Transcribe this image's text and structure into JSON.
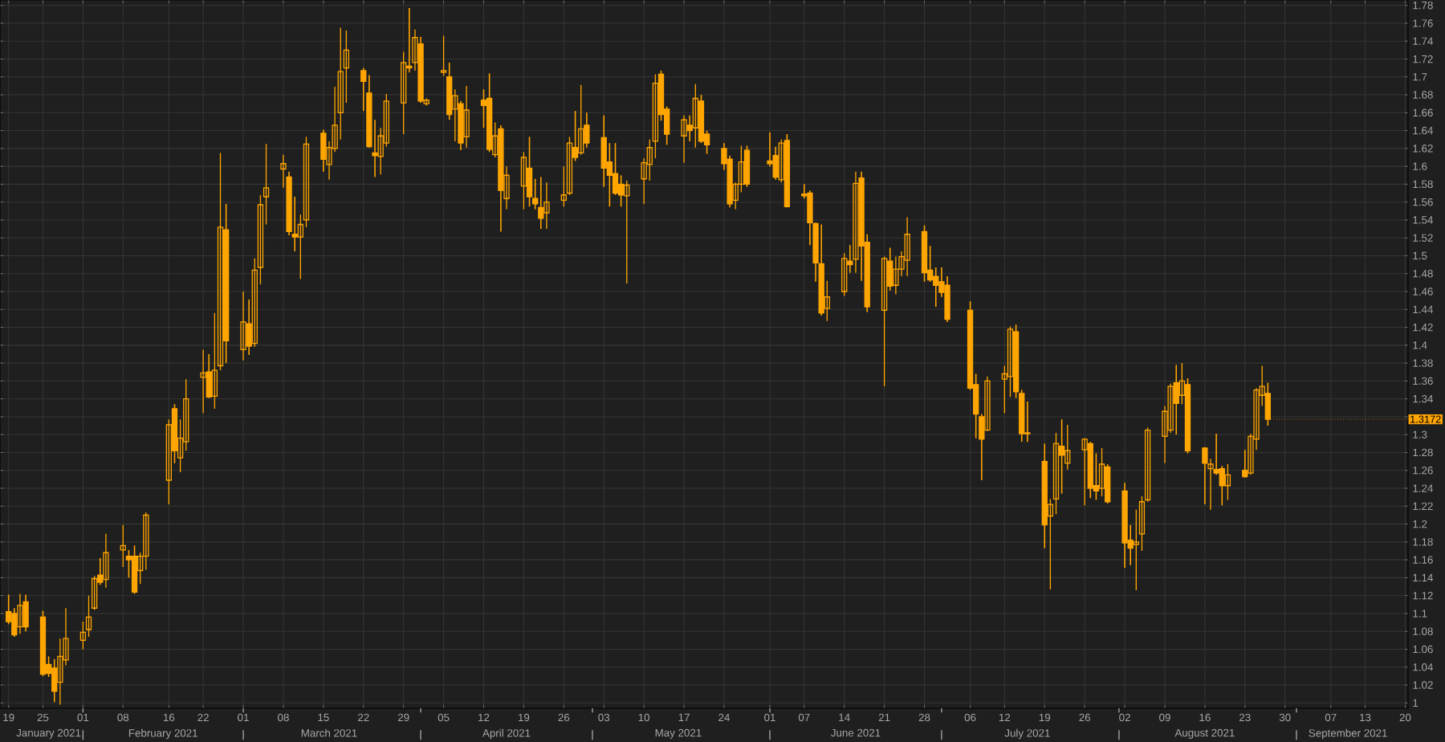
{
  "chart_data": {
    "type": "candlestick",
    "color": "#ffa500",
    "grid": true,
    "x": [
      "2021-01-19",
      "2021-01-20",
      "2021-01-21",
      "2021-01-22",
      "2021-01-25",
      "2021-01-26",
      "2021-01-27",
      "2021-01-28",
      "2021-01-29",
      "2021-02-01",
      "2021-02-02",
      "2021-02-03",
      "2021-02-04",
      "2021-02-05",
      "2021-02-08",
      "2021-02-09",
      "2021-02-10",
      "2021-02-11",
      "2021-02-12",
      "2021-02-16",
      "2021-02-17",
      "2021-02-18",
      "2021-02-19",
      "2021-02-22",
      "2021-02-23",
      "2021-02-24",
      "2021-02-25",
      "2021-02-26",
      "2021-03-01",
      "2021-03-02",
      "2021-03-03",
      "2021-03-04",
      "2021-03-05",
      "2021-03-08",
      "2021-03-09",
      "2021-03-10",
      "2021-03-11",
      "2021-03-12",
      "2021-03-15",
      "2021-03-16",
      "2021-03-17",
      "2021-03-18",
      "2021-03-19",
      "2021-03-22",
      "2021-03-23",
      "2021-03-24",
      "2021-03-25",
      "2021-03-26",
      "2021-03-29",
      "2021-03-30",
      "2021-03-31",
      "2021-04-01",
      "2021-04-02",
      "2021-04-05",
      "2021-04-06",
      "2021-04-07",
      "2021-04-08",
      "2021-04-09",
      "2021-04-12",
      "2021-04-13",
      "2021-04-14",
      "2021-04-15",
      "2021-04-16",
      "2021-04-19",
      "2021-04-20",
      "2021-04-21",
      "2021-04-22",
      "2021-04-23",
      "2021-04-26",
      "2021-04-27",
      "2021-04-28",
      "2021-04-29",
      "2021-04-30",
      "2021-05-03",
      "2021-05-04",
      "2021-05-05",
      "2021-05-06",
      "2021-05-07",
      "2021-05-10",
      "2021-05-11",
      "2021-05-12",
      "2021-05-13",
      "2021-05-14",
      "2021-05-17",
      "2021-05-18",
      "2021-05-19",
      "2021-05-20",
      "2021-05-21",
      "2021-05-24",
      "2021-05-25",
      "2021-05-26",
      "2021-05-27",
      "2021-05-28",
      "2021-06-01",
      "2021-06-02",
      "2021-06-03",
      "2021-06-04",
      "2021-06-07",
      "2021-06-08",
      "2021-06-09",
      "2021-06-10",
      "2021-06-11",
      "2021-06-14",
      "2021-06-15",
      "2021-06-16",
      "2021-06-17",
      "2021-06-18",
      "2021-06-21",
      "2021-06-22",
      "2021-06-23",
      "2021-06-24",
      "2021-06-25",
      "2021-06-28",
      "2021-06-29",
      "2021-06-30",
      "2021-07-01",
      "2021-07-02",
      "2021-07-06",
      "2021-07-07",
      "2021-07-08",
      "2021-07-09",
      "2021-07-12",
      "2021-07-13",
      "2021-07-14",
      "2021-07-15",
      "2021-07-16",
      "2021-07-19",
      "2021-07-20",
      "2021-07-21",
      "2021-07-22",
      "2021-07-23",
      "2021-07-26",
      "2021-07-27",
      "2021-07-28",
      "2021-07-29",
      "2021-07-30",
      "2021-08-02",
      "2021-08-03",
      "2021-08-04",
      "2021-08-05",
      "2021-08-06",
      "2021-08-09",
      "2021-08-10",
      "2021-08-11",
      "2021-08-12",
      "2021-08-13",
      "2021-08-16",
      "2021-08-17",
      "2021-08-18",
      "2021-08-19",
      "2021-08-20",
      "2021-08-23",
      "2021-08-24",
      "2021-08-25",
      "2021-08-26",
      "2021-08-27"
    ],
    "ohlc": [
      [
        1.102,
        1.121,
        1.088,
        1.091
      ],
      [
        1.1,
        1.106,
        1.074,
        1.076
      ],
      [
        1.085,
        1.122,
        1.077,
        1.109
      ],
      [
        1.113,
        1.121,
        1.08,
        1.085
      ],
      [
        1.096,
        1.103,
        1.03,
        1.032
      ],
      [
        1.043,
        1.052,
        1.029,
        1.033
      ],
      [
        1.039,
        1.049,
        1.001,
        1.013
      ],
      [
        1.023,
        1.072,
        0.998,
        1.052
      ],
      [
        1.048,
        1.106,
        1.042,
        1.072
      ],
      [
        1.07,
        1.091,
        1.06,
        1.079
      ],
      [
        1.082,
        1.12,
        1.074,
        1.096
      ],
      [
        1.106,
        1.142,
        1.104,
        1.139
      ],
      [
        1.143,
        1.162,
        1.132,
        1.135
      ],
      [
        1.138,
        1.189,
        1.129,
        1.168
      ],
      [
        1.171,
        1.199,
        1.152,
        1.176
      ],
      [
        1.164,
        1.171,
        1.14,
        1.16
      ],
      [
        1.164,
        1.176,
        1.122,
        1.124
      ],
      [
        1.148,
        1.168,
        1.133,
        1.164
      ],
      [
        1.164,
        1.213,
        1.149,
        1.21
      ],
      [
        1.249,
        1.317,
        1.222,
        1.311
      ],
      [
        1.329,
        1.334,
        1.268,
        1.282
      ],
      [
        1.274,
        1.317,
        1.258,
        1.296
      ],
      [
        1.292,
        1.362,
        1.282,
        1.34
      ],
      [
        1.364,
        1.395,
        1.324,
        1.369
      ],
      [
        1.37,
        1.39,
        1.341,
        1.342
      ],
      [
        1.343,
        1.436,
        1.329,
        1.372
      ],
      [
        1.377,
        1.615,
        1.372,
        1.532
      ],
      [
        1.529,
        1.558,
        1.38,
        1.405
      ],
      [
        1.395,
        1.46,
        1.383,
        1.426
      ],
      [
        1.424,
        1.451,
        1.389,
        1.399
      ],
      [
        1.402,
        1.497,
        1.398,
        1.484
      ],
      [
        1.487,
        1.568,
        1.468,
        1.557
      ],
      [
        1.566,
        1.625,
        1.535,
        1.576
      ],
      [
        1.597,
        1.613,
        1.576,
        1.603
      ],
      [
        1.588,
        1.594,
        1.523,
        1.527
      ],
      [
        1.524,
        1.566,
        1.505,
        1.521
      ],
      [
        1.521,
        1.546,
        1.474,
        1.535
      ],
      [
        1.54,
        1.633,
        1.532,
        1.625
      ],
      [
        1.637,
        1.641,
        1.594,
        1.608
      ],
      [
        1.602,
        1.628,
        1.585,
        1.621
      ],
      [
        1.62,
        1.689,
        1.616,
        1.646
      ],
      [
        1.66,
        1.755,
        1.63,
        1.706
      ],
      [
        1.71,
        1.752,
        1.671,
        1.73
      ],
      [
        1.707,
        1.71,
        1.662,
        1.695
      ],
      [
        1.682,
        1.702,
        1.621,
        1.622
      ],
      [
        1.615,
        1.652,
        1.588,
        1.612
      ],
      [
        1.611,
        1.643,
        1.591,
        1.634
      ],
      [
        1.626,
        1.681,
        1.622,
        1.673
      ],
      [
        1.671,
        1.728,
        1.636,
        1.716
      ],
      [
        1.712,
        1.777,
        1.705,
        1.71
      ],
      [
        1.716,
        1.753,
        1.707,
        1.744
      ],
      [
        1.737,
        1.745,
        1.671,
        1.673
      ],
      [
        1.67,
        1.676,
        1.668,
        1.674
      ],
      [
        1.705,
        1.746,
        1.701,
        1.707
      ],
      [
        1.7,
        1.716,
        1.652,
        1.658
      ],
      [
        1.664,
        1.686,
        1.628,
        1.679
      ],
      [
        1.67,
        1.673,
        1.618,
        1.626
      ],
      [
        1.633,
        1.69,
        1.621,
        1.663
      ],
      [
        1.674,
        1.686,
        1.643,
        1.668
      ],
      [
        1.676,
        1.704,
        1.616,
        1.619
      ],
      [
        1.613,
        1.649,
        1.61,
        1.634
      ],
      [
        1.642,
        1.646,
        1.527,
        1.573
      ],
      [
        1.564,
        1.6,
        1.552,
        1.59
      ],
      [
        1.578,
        1.616,
        1.552,
        1.61
      ],
      [
        1.598,
        1.633,
        1.555,
        1.566
      ],
      [
        1.564,
        1.586,
        1.552,
        1.558
      ],
      [
        1.554,
        1.588,
        1.53,
        1.542
      ],
      [
        1.548,
        1.582,
        1.53,
        1.56
      ],
      [
        1.562,
        1.6,
        1.555,
        1.568
      ],
      [
        1.57,
        1.633,
        1.568,
        1.626
      ],
      [
        1.621,
        1.662,
        1.606,
        1.61
      ],
      [
        1.615,
        1.691,
        1.613,
        1.642
      ],
      [
        1.646,
        1.66,
        1.621,
        1.626
      ],
      [
        1.632,
        1.657,
        1.577,
        1.598
      ],
      [
        1.605,
        1.626,
        1.555,
        1.59
      ],
      [
        1.592,
        1.626,
        1.568,
        1.57
      ],
      [
        1.58,
        1.59,
        1.555,
        1.568
      ],
      [
        1.567,
        1.584,
        1.469,
        1.579
      ],
      [
        1.586,
        1.609,
        1.558,
        1.604
      ],
      [
        1.602,
        1.63,
        1.584,
        1.621
      ],
      [
        1.628,
        1.703,
        1.609,
        1.693
      ],
      [
        1.703,
        1.707,
        1.651,
        1.658
      ],
      [
        1.664,
        1.667,
        1.624,
        1.636
      ],
      [
        1.634,
        1.657,
        1.604,
        1.652
      ],
      [
        1.646,
        1.657,
        1.628,
        1.64
      ],
      [
        1.643,
        1.692,
        1.621,
        1.676
      ],
      [
        1.673,
        1.68,
        1.626,
        1.628
      ],
      [
        1.636,
        1.64,
        1.614,
        1.624
      ],
      [
        1.62,
        1.626,
        1.596,
        1.603
      ],
      [
        1.608,
        1.612,
        1.554,
        1.558
      ],
      [
        1.562,
        1.582,
        1.552,
        1.58
      ],
      [
        1.58,
        1.623,
        1.571,
        1.605
      ],
      [
        1.618,
        1.623,
        1.577,
        1.58
      ],
      [
        1.606,
        1.638,
        1.6,
        1.603
      ],
      [
        1.612,
        1.622,
        1.585,
        1.588
      ],
      [
        1.585,
        1.63,
        1.582,
        1.626
      ],
      [
        1.629,
        1.636,
        1.554,
        1.555
      ],
      [
        1.569,
        1.58,
        1.564,
        1.567
      ],
      [
        1.57,
        1.573,
        1.512,
        1.537
      ],
      [
        1.536,
        1.537,
        1.471,
        1.492
      ],
      [
        1.491,
        1.535,
        1.433,
        1.436
      ],
      [
        1.441,
        1.472,
        1.427,
        1.454
      ],
      [
        1.46,
        1.503,
        1.455,
        1.497
      ],
      [
        1.494,
        1.512,
        1.481,
        1.49
      ],
      [
        1.496,
        1.594,
        1.481,
        1.581
      ],
      [
        1.587,
        1.594,
        1.472,
        1.511
      ],
      [
        1.515,
        1.524,
        1.437,
        1.443
      ],
      [
        1.439,
        1.499,
        1.354,
        1.497
      ],
      [
        1.494,
        1.509,
        1.461,
        1.466
      ],
      [
        1.467,
        1.499,
        1.457,
        1.485
      ],
      [
        1.485,
        1.505,
        1.477,
        1.499
      ],
      [
        1.495,
        1.543,
        1.477,
        1.524
      ],
      [
        1.527,
        1.534,
        1.471,
        1.481
      ],
      [
        1.484,
        1.511,
        1.471,
        1.473
      ],
      [
        1.477,
        1.487,
        1.443,
        1.467
      ],
      [
        1.471,
        1.487,
        1.454,
        1.459
      ],
      [
        1.467,
        1.477,
        1.426,
        1.429
      ],
      [
        1.439,
        1.449,
        1.35,
        1.352
      ],
      [
        1.356,
        1.368,
        1.296,
        1.323
      ],
      [
        1.32,
        1.323,
        1.249,
        1.295
      ],
      [
        1.305,
        1.365,
        1.304,
        1.36
      ],
      [
        1.362,
        1.377,
        1.324,
        1.368
      ],
      [
        1.365,
        1.421,
        1.342,
        1.418
      ],
      [
        1.415,
        1.423,
        1.341,
        1.348
      ],
      [
        1.346,
        1.35,
        1.292,
        1.301
      ],
      [
        1.302,
        1.337,
        1.292,
        1.301
      ],
      [
        1.27,
        1.29,
        1.173,
        1.199
      ],
      [
        1.209,
        1.228,
        1.127,
        1.222
      ],
      [
        1.228,
        1.302,
        1.211,
        1.29
      ],
      [
        1.287,
        1.317,
        1.234,
        1.277
      ],
      [
        1.268,
        1.311,
        1.261,
        1.282
      ],
      [
        1.283,
        1.296,
        1.221,
        1.295
      ],
      [
        1.29,
        1.292,
        1.229,
        1.24
      ],
      [
        1.243,
        1.279,
        1.227,
        1.237
      ],
      [
        1.24,
        1.285,
        1.231,
        1.267
      ],
      [
        1.264,
        1.267,
        1.223,
        1.225
      ],
      [
        1.237,
        1.246,
        1.151,
        1.179
      ],
      [
        1.182,
        1.199,
        1.154,
        1.173
      ],
      [
        1.177,
        1.216,
        1.126,
        1.18
      ],
      [
        1.189,
        1.231,
        1.17,
        1.225
      ],
      [
        1.227,
        1.308,
        1.225,
        1.305
      ],
      [
        1.298,
        1.332,
        1.268,
        1.326
      ],
      [
        1.305,
        1.357,
        1.302,
        1.354
      ],
      [
        1.358,
        1.378,
        1.3,
        1.335
      ],
      [
        1.344,
        1.38,
        1.334,
        1.36
      ],
      [
        1.356,
        1.363,
        1.279,
        1.282
      ],
      [
        1.285,
        1.286,
        1.222,
        1.268
      ],
      [
        1.262,
        1.273,
        1.216,
        1.267
      ],
      [
        1.261,
        1.301,
        1.255,
        1.257
      ],
      [
        1.262,
        1.265,
        1.221,
        1.243
      ],
      [
        1.243,
        1.267,
        1.227,
        1.255
      ],
      [
        1.26,
        1.283,
        1.252,
        1.253
      ],
      [
        1.257,
        1.301,
        1.255,
        1.298
      ],
      [
        1.295,
        1.352,
        1.283,
        1.35
      ],
      [
        1.344,
        1.377,
        1.332,
        1.354
      ],
      [
        1.346,
        1.358,
        1.31,
        1.3172
      ]
    ],
    "xlim": [
      "2021-01-17T12:00",
      "2021-09-20T12:00"
    ],
    "xticks": [
      {
        "value": "2021-01-19",
        "label": "19"
      },
      {
        "value": "2021-01-25",
        "label": "25"
      },
      {
        "value": "2021-02-01",
        "label": "01"
      },
      {
        "value": "2021-02-08",
        "label": "08"
      },
      {
        "value": "2021-02-16",
        "label": "16"
      },
      {
        "value": "2021-02-22",
        "label": "22"
      },
      {
        "value": "2021-03-01",
        "label": "01"
      },
      {
        "value": "2021-03-08",
        "label": "08"
      },
      {
        "value": "2021-03-15",
        "label": "15"
      },
      {
        "value": "2021-03-22",
        "label": "22"
      },
      {
        "value": "2021-03-29",
        "label": "29"
      },
      {
        "value": "2021-04-05",
        "label": "05"
      },
      {
        "value": "2021-04-12",
        "label": "12"
      },
      {
        "value": "2021-04-19",
        "label": "19"
      },
      {
        "value": "2021-04-26",
        "label": "26"
      },
      {
        "value": "2021-05-03",
        "label": "03"
      },
      {
        "value": "2021-05-10",
        "label": "10"
      },
      {
        "value": "2021-05-17",
        "label": "17"
      },
      {
        "value": "2021-05-24",
        "label": "24"
      },
      {
        "value": "2021-06-01",
        "label": "01"
      },
      {
        "value": "2021-06-07",
        "label": "07"
      },
      {
        "value": "2021-06-14",
        "label": "14"
      },
      {
        "value": "2021-06-21",
        "label": "21"
      },
      {
        "value": "2021-06-28",
        "label": "28"
      },
      {
        "value": "2021-07-06",
        "label": "06"
      },
      {
        "value": "2021-07-12",
        "label": "12"
      },
      {
        "value": "2021-07-19",
        "label": "19"
      },
      {
        "value": "2021-07-26",
        "label": "26"
      },
      {
        "value": "2021-08-02",
        "label": "02"
      },
      {
        "value": "2021-08-09",
        "label": "09"
      },
      {
        "value": "2021-08-16",
        "label": "16"
      },
      {
        "value": "2021-08-23",
        "label": "23"
      },
      {
        "value": "2021-08-30",
        "label": "30"
      },
      {
        "value": "2021-09-07",
        "label": "07"
      },
      {
        "value": "2021-09-13",
        "label": "13"
      },
      {
        "value": "2021-09-20",
        "label": "20"
      }
    ],
    "x2lim": [
      "2021-01-17T12:00",
      "2021-09-20T12:00"
    ],
    "x2ticks": [
      {
        "value": "2021-01-26",
        "label": "January 2021"
      },
      {
        "value": "2021-02-01",
        "label": null
      },
      {
        "value": "2021-02-15",
        "label": "February 2021"
      },
      {
        "value": "2021-03-01",
        "label": null
      },
      {
        "value": "2021-03-16",
        "label": "March 2021"
      },
      {
        "value": "2021-04-01",
        "label": null
      },
      {
        "value": "2021-04-16",
        "label": "April 2021"
      },
      {
        "value": "2021-05-01",
        "label": null
      },
      {
        "value": "2021-05-16",
        "label": "May 2021"
      },
      {
        "value": "2021-06-01",
        "label": null
      },
      {
        "value": "2021-06-16",
        "label": "June 2021"
      },
      {
        "value": "2021-07-01",
        "label": null
      },
      {
        "value": "2021-07-16",
        "label": "July 2021"
      },
      {
        "value": "2021-08-01",
        "label": null
      },
      {
        "value": "2021-08-16",
        "label": "August 2021"
      },
      {
        "value": "2021-09-01",
        "label": null
      },
      {
        "value": "2021-09-10",
        "label": "September 2021"
      }
    ],
    "ylim": [
      0.994,
      1.786
    ],
    "yticks": [
      1,
      1.02,
      1.04,
      1.06,
      1.08,
      1.1,
      1.12,
      1.14,
      1.16,
      1.18,
      1.2,
      1.22,
      1.24,
      1.26,
      1.28,
      1.3,
      {
        "value": 1.32,
        "label": null
      },
      1.34,
      1.36,
      1.38,
      1.4,
      1.42,
      1.44,
      1.46,
      1.48,
      1.5,
      1.52,
      1.54,
      1.56,
      1.58,
      1.6,
      1.62,
      1.64,
      1.66,
      1.68,
      1.7,
      1.72,
      1.74,
      1.76,
      1.78
    ],
    "annotations": [
      {
        "text": "1.3172",
        "x": "2021-08-27",
        "y": 1.3172
      }
    ]
  }
}
